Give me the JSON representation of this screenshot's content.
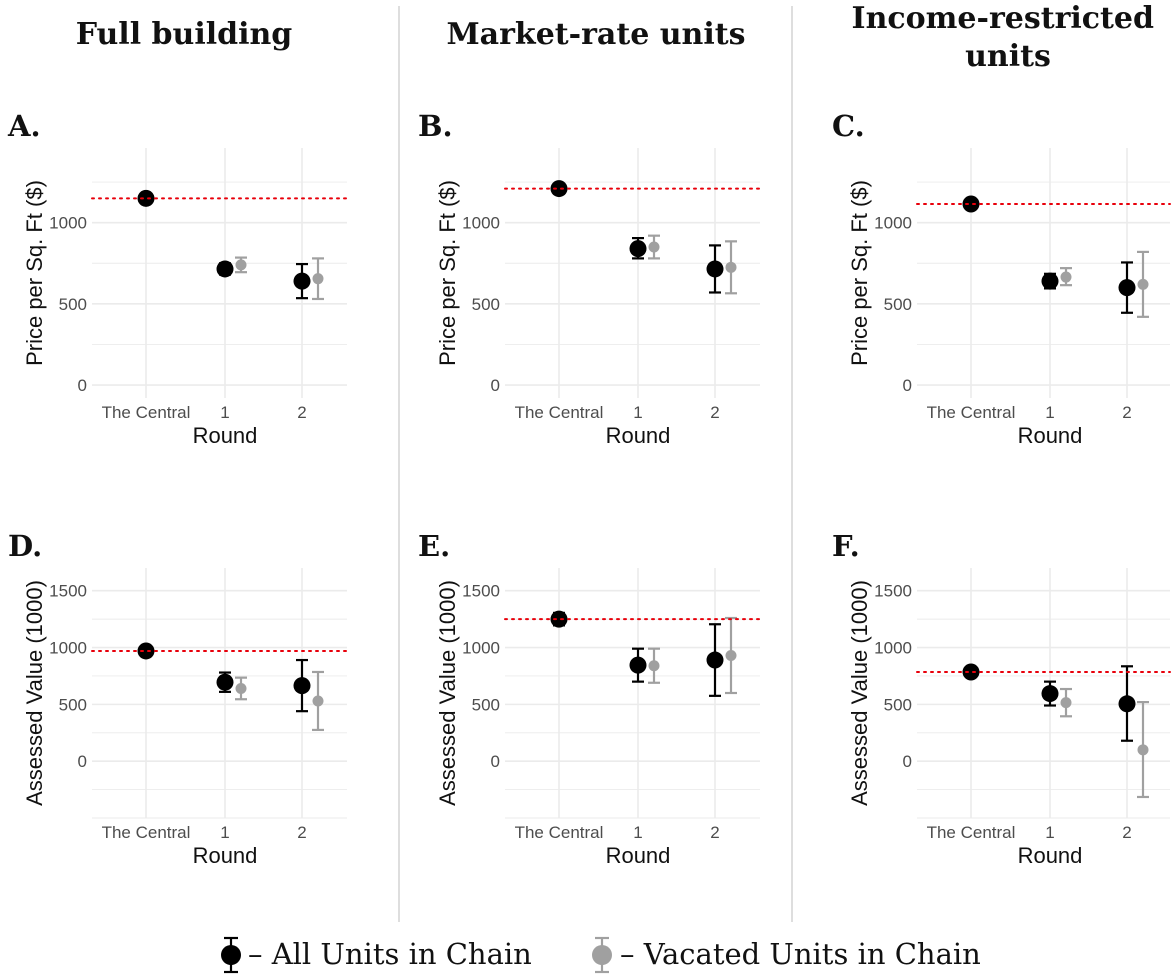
{
  "columns": [
    "Full building",
    "Market-rate units",
    "Income-restricted units"
  ],
  "legend": {
    "all": {
      "label": "– All Units in Chain",
      "color": "#000000"
    },
    "vacated": {
      "label": "– Vacated Units in Chain",
      "color": "#a0a0a0"
    }
  },
  "colors": {
    "reference_line": "#e8000b",
    "grid": "#ebebeb",
    "divider": "#c8c8c8"
  },
  "chart_data": [
    {
      "id": "A",
      "type": "scatter",
      "xlabel": "Round",
      "ylabel": "Price per Sq. Ft ($)",
      "categories": [
        "The Central",
        "1",
        "2"
      ],
      "ylim": [
        -80,
        1460
      ],
      "yticks": [
        0,
        500,
        1000
      ],
      "reference": 1150,
      "grid": true,
      "series": [
        {
          "key": "all",
          "points": [
            {
              "x": "The Central",
              "y": 1150,
              "lo": 1150,
              "hi": 1150
            },
            {
              "x": "1",
              "y": 715,
              "lo": 680,
              "hi": 750
            },
            {
              "x": "2",
              "y": 640,
              "lo": 535,
              "hi": 745
            }
          ]
        },
        {
          "key": "vacated",
          "points": [
            {
              "x": "1",
              "y": 740,
              "lo": 695,
              "hi": 785
            },
            {
              "x": "2",
              "y": 655,
              "lo": 530,
              "hi": 780
            }
          ]
        }
      ]
    },
    {
      "id": "B",
      "type": "scatter",
      "xlabel": "Round",
      "ylabel": "Price per Sq. Ft ($)",
      "categories": [
        "The Central",
        "1",
        "2"
      ],
      "ylim": [
        -80,
        1460
      ],
      "yticks": [
        0,
        500,
        1000
      ],
      "reference": 1210,
      "grid": true,
      "series": [
        {
          "key": "all",
          "points": [
            {
              "x": "The Central",
              "y": 1210,
              "lo": 1210,
              "hi": 1210
            },
            {
              "x": "1",
              "y": 840,
              "lo": 780,
              "hi": 905
            },
            {
              "x": "2",
              "y": 715,
              "lo": 570,
              "hi": 860
            }
          ]
        },
        {
          "key": "vacated",
          "points": [
            {
              "x": "1",
              "y": 850,
              "lo": 780,
              "hi": 920
            },
            {
              "x": "2",
              "y": 725,
              "lo": 565,
              "hi": 885
            }
          ]
        }
      ]
    },
    {
      "id": "C",
      "type": "scatter",
      "xlabel": "Round",
      "ylabel": "Price per Sq. Ft ($)",
      "categories": [
        "The Central",
        "1",
        "2"
      ],
      "ylim": [
        -80,
        1460
      ],
      "yticks": [
        0,
        500,
        1000
      ],
      "reference": 1115,
      "grid": true,
      "series": [
        {
          "key": "all",
          "points": [
            {
              "x": "The Central",
              "y": 1115,
              "lo": 1115,
              "hi": 1115
            },
            {
              "x": "1",
              "y": 640,
              "lo": 595,
              "hi": 685
            },
            {
              "x": "2",
              "y": 600,
              "lo": 445,
              "hi": 755
            }
          ]
        },
        {
          "key": "vacated",
          "points": [
            {
              "x": "1",
              "y": 665,
              "lo": 615,
              "hi": 720
            },
            {
              "x": "2",
              "y": 620,
              "lo": 420,
              "hi": 820
            }
          ]
        }
      ]
    },
    {
      "id": "D",
      "type": "scatter",
      "xlabel": "Round",
      "ylabel": "Assessed Value (1000)",
      "categories": [
        "The Central",
        "1",
        "2"
      ],
      "ylim": [
        -500,
        1700
      ],
      "yticks": [
        0,
        500,
        1000,
        1500
      ],
      "reference": 970,
      "grid": true,
      "series": [
        {
          "key": "all",
          "points": [
            {
              "x": "The Central",
              "y": 970,
              "lo": 930,
              "hi": 1010
            },
            {
              "x": "1",
              "y": 695,
              "lo": 610,
              "hi": 780
            },
            {
              "x": "2",
              "y": 665,
              "lo": 440,
              "hi": 890
            }
          ]
        },
        {
          "key": "vacated",
          "points": [
            {
              "x": "1",
              "y": 640,
              "lo": 545,
              "hi": 735
            },
            {
              "x": "2",
              "y": 530,
              "lo": 275,
              "hi": 785
            }
          ]
        }
      ]
    },
    {
      "id": "E",
      "type": "scatter",
      "xlabel": "Round",
      "ylabel": "Assessed Value (1000)",
      "categories": [
        "The Central",
        "1",
        "2"
      ],
      "ylim": [
        -500,
        1700
      ],
      "yticks": [
        0,
        500,
        1000,
        1500
      ],
      "reference": 1250,
      "grid": true,
      "series": [
        {
          "key": "all",
          "points": [
            {
              "x": "The Central",
              "y": 1250,
              "lo": 1195,
              "hi": 1305
            },
            {
              "x": "1",
              "y": 845,
              "lo": 700,
              "hi": 990
            },
            {
              "x": "2",
              "y": 890,
              "lo": 575,
              "hi": 1205
            }
          ]
        },
        {
          "key": "vacated",
          "points": [
            {
              "x": "1",
              "y": 840,
              "lo": 690,
              "hi": 990
            },
            {
              "x": "2",
              "y": 930,
              "lo": 600,
              "hi": 1260
            }
          ]
        }
      ]
    },
    {
      "id": "F",
      "type": "scatter",
      "xlabel": "Round",
      "ylabel": "Assessed Value (1000)",
      "categories": [
        "The Central",
        "1",
        "2"
      ],
      "ylim": [
        -500,
        1700
      ],
      "yticks": [
        0,
        500,
        1000,
        1500
      ],
      "reference": 785,
      "grid": true,
      "series": [
        {
          "key": "all",
          "points": [
            {
              "x": "The Central",
              "y": 785,
              "lo": 745,
              "hi": 825
            },
            {
              "x": "1",
              "y": 595,
              "lo": 490,
              "hi": 700
            },
            {
              "x": "2",
              "y": 505,
              "lo": 180,
              "hi": 835
            }
          ]
        },
        {
          "key": "vacated",
          "points": [
            {
              "x": "1",
              "y": 515,
              "lo": 395,
              "hi": 635
            },
            {
              "x": "2",
              "y": 100,
              "lo": -315,
              "hi": 520
            }
          ]
        }
      ]
    }
  ]
}
